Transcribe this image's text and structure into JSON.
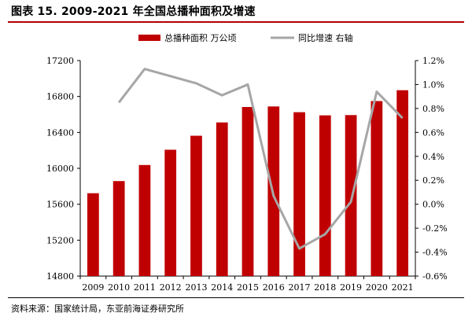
{
  "header": {
    "title": "图表 15. 2009-2021 年全国总播种面积及增速"
  },
  "footer": {
    "source": "资料来源：国家统计局，东亚前海证券研究所"
  },
  "chart_data": {
    "type": "bar",
    "title": "图表 15. 2009-2021 年全国总播种面积及增速",
    "categories": [
      "2009",
      "2010",
      "2011",
      "2012",
      "2013",
      "2014",
      "2015",
      "2016",
      "2017",
      "2018",
      "2019",
      "2020",
      "2021"
    ],
    "series": [
      {
        "name": "总播种面积  万公顷",
        "type": "bar",
        "axis": "left",
        "color": "#c00000",
        "values": [
          15723,
          15858,
          16037,
          16207,
          16363,
          16511,
          16683,
          16689,
          16625,
          16590,
          16593,
          16749,
          16870
        ]
      },
      {
        "name": "同比增速  右轴",
        "type": "line",
        "axis": "right",
        "color": "#a6a6a6",
        "values": [
          null,
          0.85,
          1.13,
          1.07,
          1.01,
          0.91,
          1.0,
          0.07,
          -0.37,
          -0.25,
          0.02,
          0.94,
          0.72
        ]
      }
    ],
    "ylim_left": [
      14800,
      17200
    ],
    "yticks_left": [
      "17200",
      "16800",
      "16400",
      "16000",
      "15600",
      "15200",
      "14800"
    ],
    "yticks_left_values": [
      17200,
      16800,
      16400,
      16000,
      15600,
      15200,
      14800
    ],
    "ylim_right": [
      -0.6,
      1.2
    ],
    "yticks_right": [
      "1.2%",
      "1.0%",
      "0.8%",
      "0.6%",
      "0.4%",
      "0.2%",
      "0.0%",
      "-0.2%",
      "-0.4%",
      "-0.6%"
    ],
    "yticks_right_values": [
      1.2,
      1.0,
      0.8,
      0.6,
      0.4,
      0.2,
      0.0,
      -0.2,
      -0.4,
      -0.6
    ],
    "grid": false,
    "legend_position": "top"
  }
}
